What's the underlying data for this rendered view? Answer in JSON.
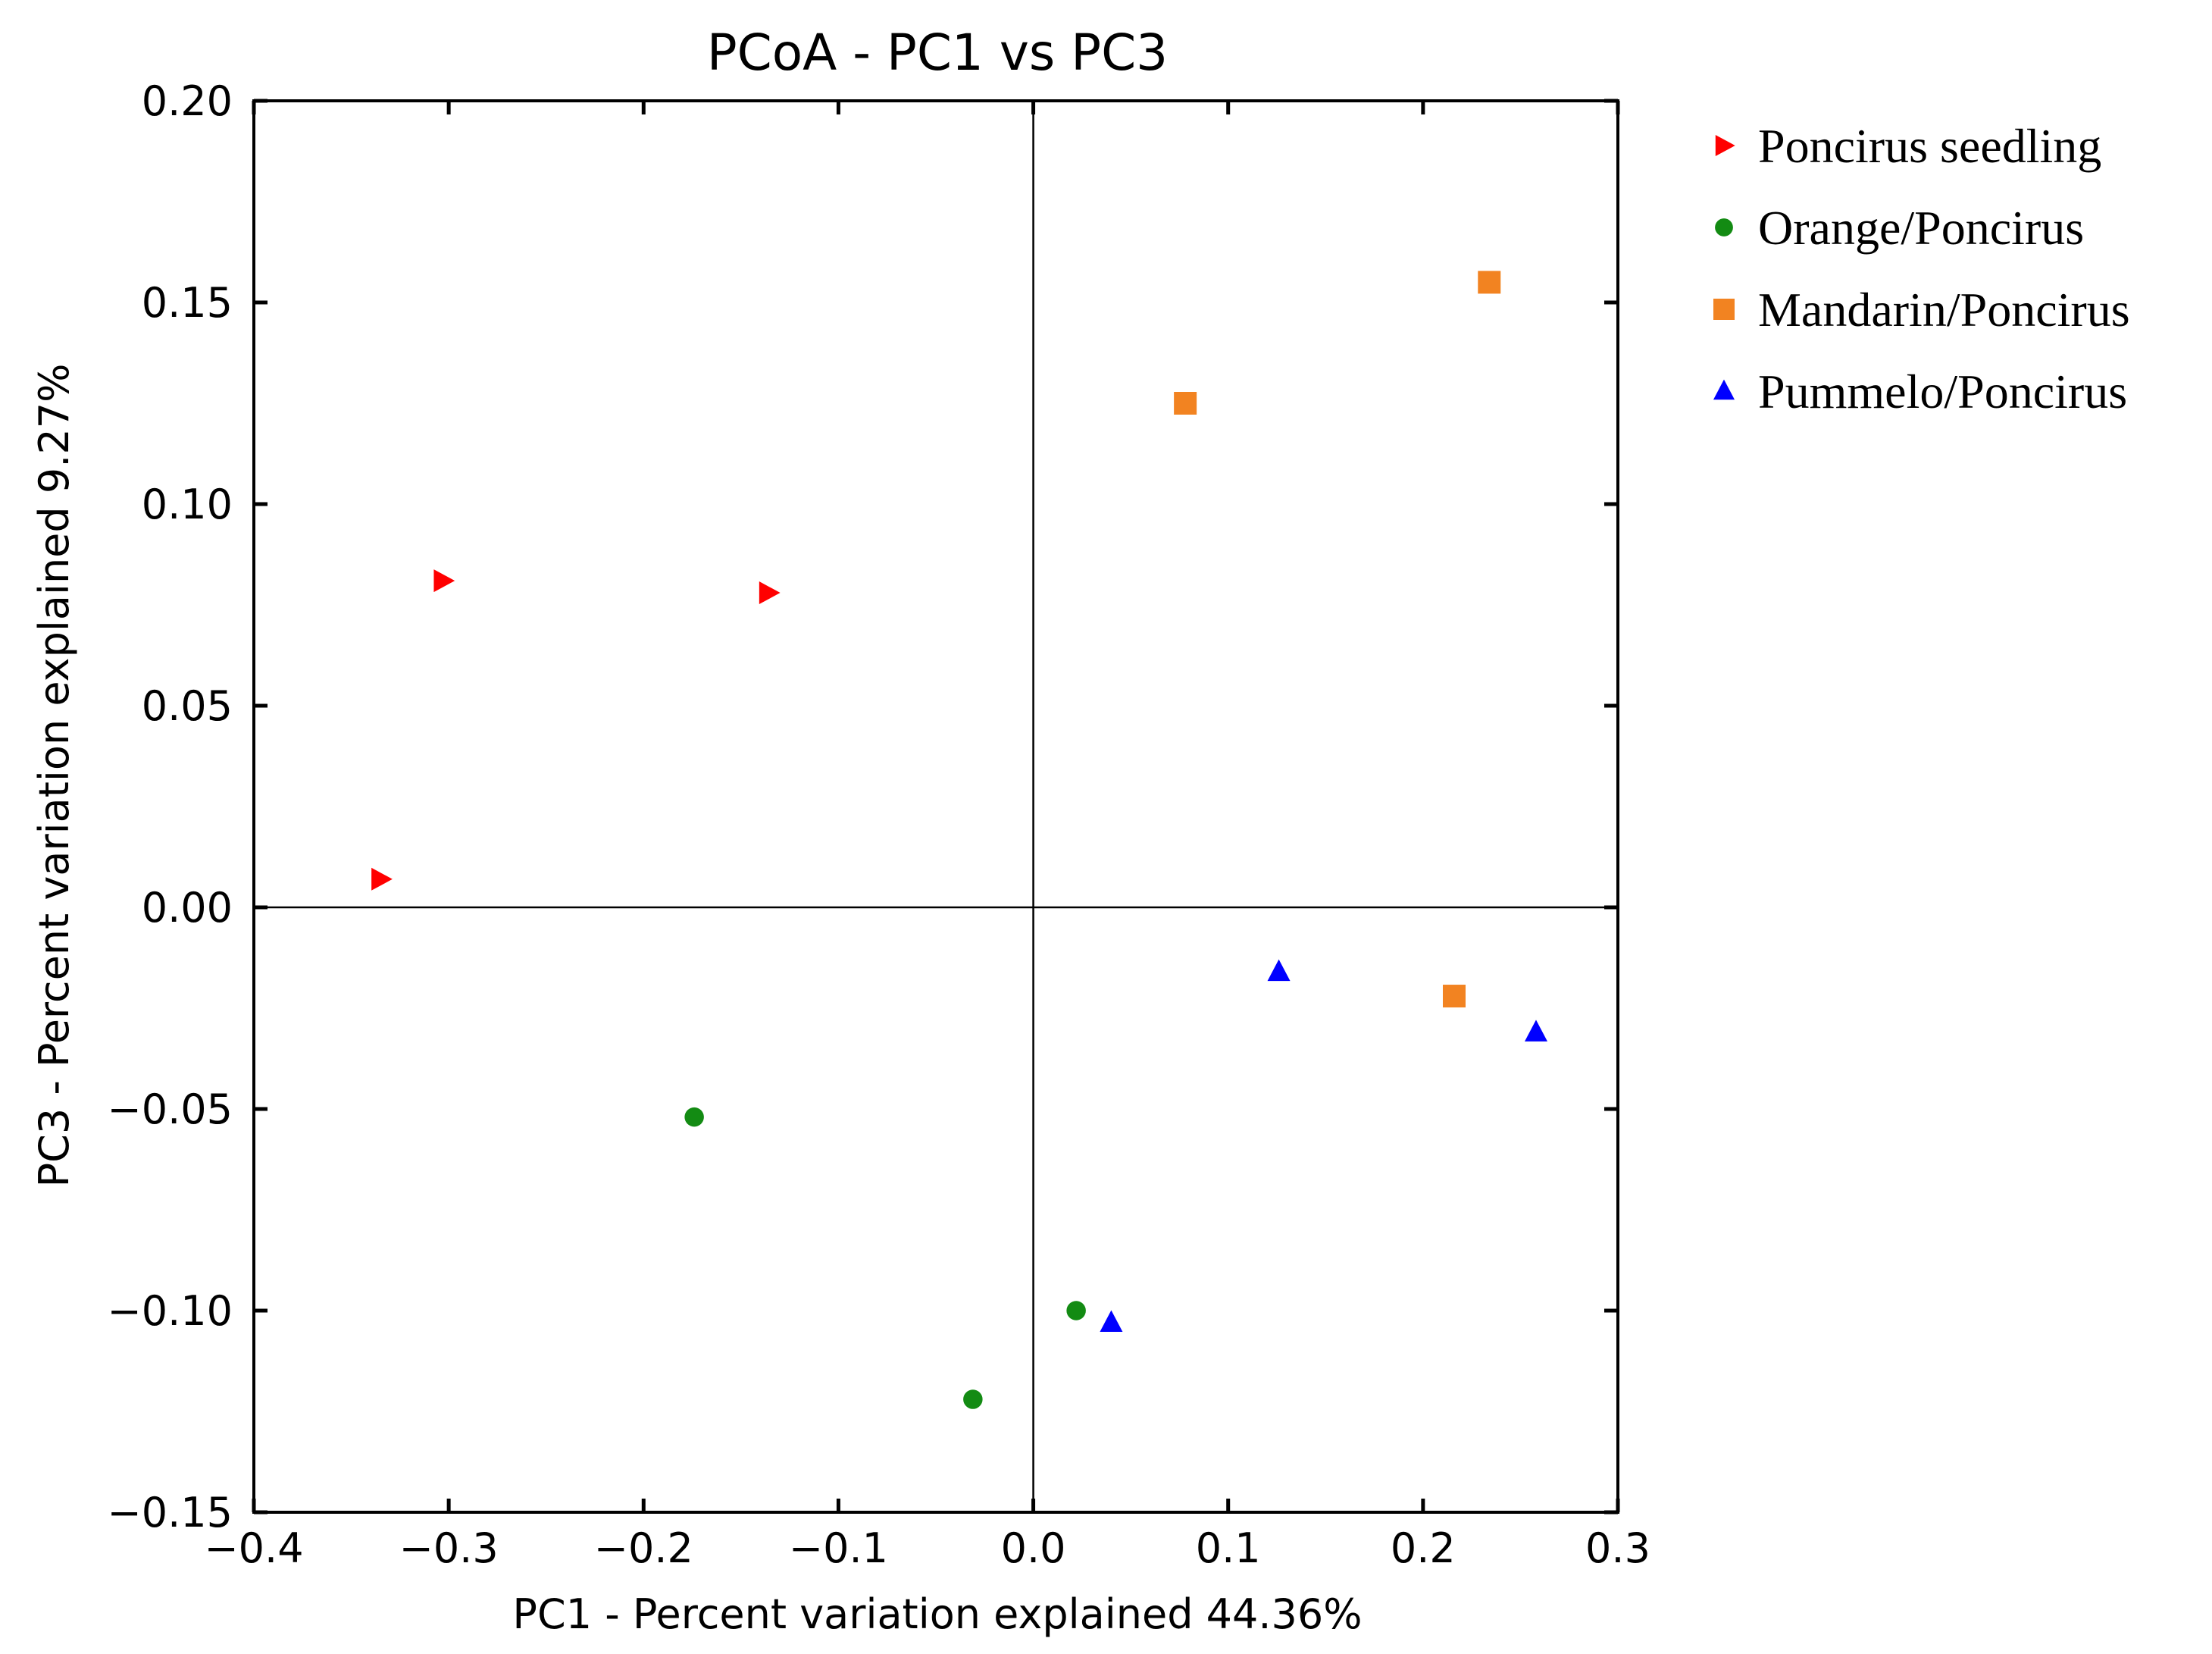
{
  "chart_data": {
    "type": "scatter",
    "title": "PCoA - PC1 vs PC3",
    "xlabel": "PC1 - Percent variation explained 44.36%",
    "ylabel": "PC3 - Percent variation explained 9.27%",
    "xlim": [
      -0.4,
      0.3
    ],
    "ylim": [
      -0.15,
      0.2
    ],
    "xticks": [
      -0.4,
      -0.3,
      -0.2,
      -0.1,
      0.0,
      0.1,
      0.2,
      0.3
    ],
    "yticks": [
      0.2,
      0.15,
      0.1,
      0.05,
      0.0,
      -0.05,
      -0.1,
      -0.15
    ],
    "xtick_labels": [
      "−0.4",
      "−0.3",
      "−0.2",
      "−0.1",
      "0.0",
      "0.1",
      "0.2",
      "0.3"
    ],
    "ytick_labels": [
      "0.20",
      "0.15",
      "0.10",
      "0.05",
      "0.00",
      "−0.05",
      "−0.10",
      "−0.15"
    ],
    "reference_lines": {
      "x": 0.0,
      "y": 0.0
    },
    "legend_position": "outside-right-top",
    "series": [
      {
        "name": "Poncirus seedling",
        "marker": "triangle-right",
        "color": "#ff0000",
        "points": [
          {
            "x": -0.303,
            "y": 0.081
          },
          {
            "x": -0.136,
            "y": 0.078
          },
          {
            "x": -0.335,
            "y": 0.007
          }
        ]
      },
      {
        "name": "Orange/Poncirus",
        "marker": "circle",
        "color": "#138b13",
        "points": [
          {
            "x": -0.174,
            "y": -0.052
          },
          {
            "x": 0.022,
            "y": -0.1
          },
          {
            "x": -0.031,
            "y": -0.122
          }
        ]
      },
      {
        "name": "Mandarin/Poncirus",
        "marker": "square",
        "color": "#f28321",
        "points": [
          {
            "x": 0.234,
            "y": 0.155
          },
          {
            "x": 0.078,
            "y": 0.125
          },
          {
            "x": 0.216,
            "y": -0.022
          }
        ]
      },
      {
        "name": "Pummelo/Poncirus",
        "marker": "triangle-up",
        "color": "#0000ff",
        "points": [
          {
            "x": 0.126,
            "y": -0.016
          },
          {
            "x": 0.258,
            "y": -0.031
          },
          {
            "x": 0.04,
            "y": -0.103
          }
        ]
      }
    ]
  }
}
